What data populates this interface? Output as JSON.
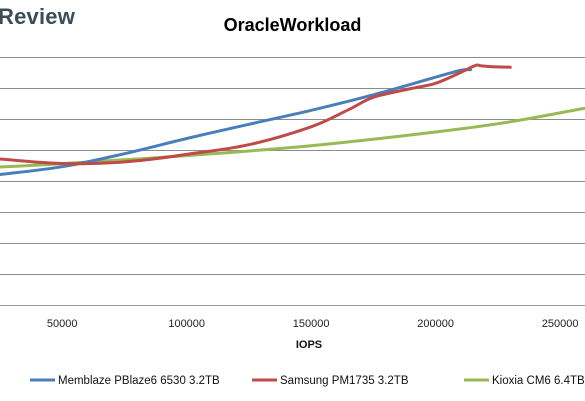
{
  "brand": {
    "logo_text": "Review"
  },
  "chart_data": {
    "type": "line",
    "title": "OracleWorkload",
    "xlabel": "IOPS",
    "ylabel": "",
    "xlim": [
      25000,
      260000
    ],
    "ylim": [
      0,
      8
    ],
    "grid": true,
    "legend_position": "bottom",
    "x_ticks": [
      50000,
      100000,
      150000,
      200000,
      250000
    ],
    "x_tick_labels": [
      "50000",
      "100000",
      "150000",
      "200000",
      "250000"
    ],
    "series": [
      {
        "name": "Memblaze PBlaze6 6530 3.2TB",
        "color": "#4a7ebb",
        "x": [
          25000,
          50000,
          75000,
          100000,
          125000,
          150000,
          175000,
          200000,
          210000,
          214000
        ],
        "y": [
          4.21,
          4.46,
          4.88,
          5.37,
          5.83,
          6.28,
          6.78,
          7.35,
          7.57,
          7.59
        ]
      },
      {
        "name": "Samsung PM1735 3.2TB",
        "color": "#be4b48",
        "x": [
          25000,
          45000,
          60000,
          80000,
          100000,
          125000,
          150000,
          165000,
          175000,
          190000,
          200000,
          210000,
          216000,
          218000,
          222000,
          230000
        ],
        "y": [
          4.71,
          4.58,
          4.56,
          4.65,
          4.86,
          5.17,
          5.75,
          6.3,
          6.7,
          6.98,
          7.15,
          7.5,
          7.73,
          7.72,
          7.69,
          7.67
        ]
      },
      {
        "name": "Kioxia CM6 6.4TB",
        "color": "#98b954",
        "x": [
          25000,
          50000,
          100000,
          150000,
          200000,
          230000,
          260000
        ],
        "y": [
          4.45,
          4.56,
          4.82,
          5.14,
          5.58,
          5.91,
          6.35
        ]
      }
    ]
  }
}
